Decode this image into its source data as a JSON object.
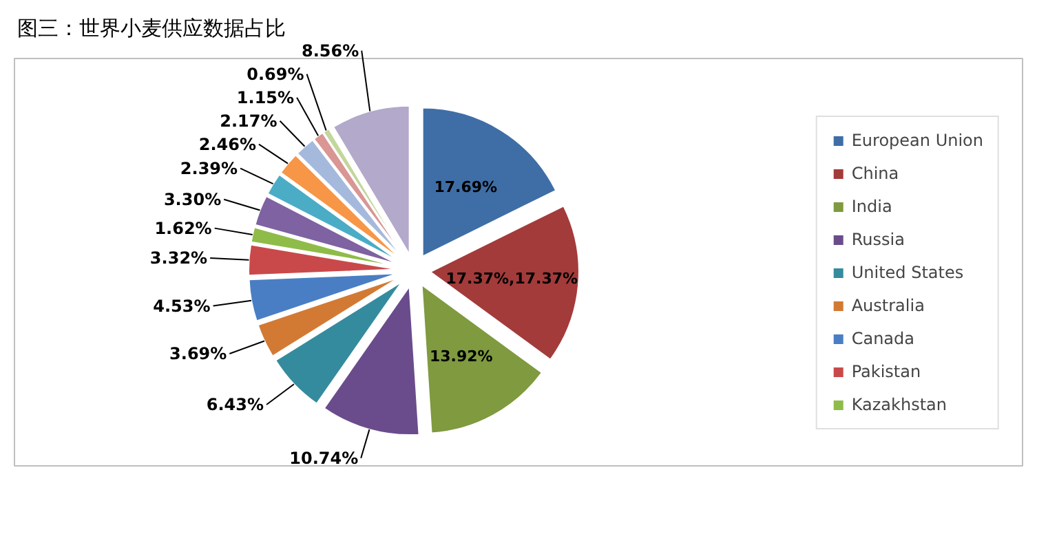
{
  "chart_data": {
    "type": "pie",
    "title": "图三：世界小麦供应数据占比",
    "categories": [
      "European Union",
      "China",
      "India",
      "Russia",
      "United States",
      "Australia",
      "Canada",
      "Pakistan",
      "Kazakhstan",
      null,
      null,
      null,
      null,
      null,
      null,
      null
    ],
    "values": [
      17.69,
      17.37,
      13.92,
      10.74,
      6.43,
      3.69,
      4.53,
      3.32,
      1.62,
      3.3,
      2.39,
      2.46,
      2.17,
      1.15,
      0.69,
      8.56
    ],
    "colors": [
      "#3f6ea6",
      "#a33b3a",
      "#7f9a3f",
      "#6a4c8c",
      "#358b9e",
      "#d27a34",
      "#4a7ec4",
      "#c9494a",
      "#8fbc49",
      "#7f62a1",
      "#4bacc6",
      "#f79646",
      "#a5b9dd",
      "#d99694",
      "#c3d69b",
      "#b3a9cb"
    ],
    "value_labels": [
      "17.69%",
      "17.37%,17.37%",
      "13.92%",
      "10.74%",
      "6.43%",
      "3.69%",
      "4.53%",
      "3.32%",
      "1.62%",
      "3.30%",
      "2.39%",
      "2.46%",
      "2.17%",
      "1.15%",
      "0.69%",
      "8.56%"
    ],
    "legend": "right"
  }
}
